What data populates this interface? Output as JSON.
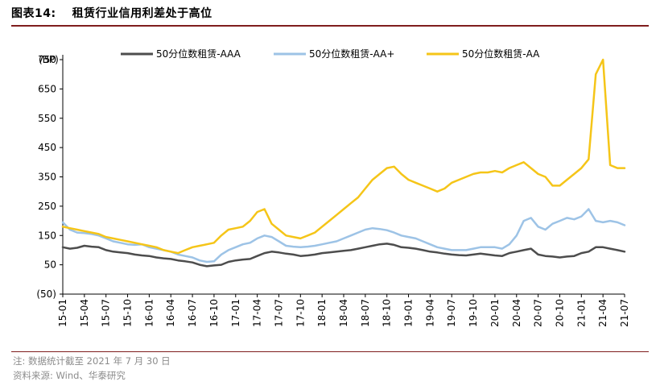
{
  "header": {
    "figure_label": "图表14:",
    "title": "租赁行业信用利差处于高位"
  },
  "footer": {
    "note": "注: 数据统计截至 2021 年 7 月 30 日",
    "source": "资料来源: Wind、华泰研究"
  },
  "chart_data": {
    "type": "line",
    "ylabel": "(BP)",
    "ylim": [
      -50,
      750
    ],
    "yticks": [
      -50,
      50,
      150,
      250,
      350,
      450,
      550,
      650,
      750
    ],
    "ytick_labels": [
      "(50)",
      "50",
      "150",
      "250",
      "350",
      "450",
      "550",
      "650",
      "750"
    ],
    "xtick_labels": [
      "15-01",
      "15-04",
      "15-07",
      "15-10",
      "16-01",
      "16-04",
      "16-07",
      "16-10",
      "17-01",
      "17-04",
      "17-07",
      "17-10",
      "18-01",
      "18-04",
      "18-07",
      "18-10",
      "19-01",
      "19-04",
      "19-07",
      "19-10",
      "20-01",
      "20-04",
      "20-07",
      "20-10",
      "21-01",
      "21-04",
      "21-07"
    ],
    "legend_position": "top",
    "grid": false,
    "x": [
      "15-01",
      "15-02",
      "15-03",
      "15-04",
      "15-05",
      "15-06",
      "15-07",
      "15-08",
      "15-09",
      "15-10",
      "15-11",
      "15-12",
      "16-01",
      "16-02",
      "16-03",
      "16-04",
      "16-05",
      "16-06",
      "16-07",
      "16-08",
      "16-09",
      "16-10",
      "16-11",
      "16-12",
      "17-01",
      "17-02",
      "17-03",
      "17-04",
      "17-05",
      "17-06",
      "17-07",
      "17-08",
      "17-09",
      "17-10",
      "17-11",
      "17-12",
      "18-01",
      "18-02",
      "18-03",
      "18-04",
      "18-05",
      "18-06",
      "18-07",
      "18-08",
      "18-09",
      "18-10",
      "18-11",
      "18-12",
      "19-01",
      "19-02",
      "19-03",
      "19-04",
      "19-05",
      "19-06",
      "19-07",
      "19-08",
      "19-09",
      "19-10",
      "19-11",
      "19-12",
      "20-01",
      "20-02",
      "20-03",
      "20-04",
      "20-05",
      "20-06",
      "20-07",
      "20-08",
      "20-09",
      "20-10",
      "20-11",
      "20-12",
      "21-01",
      "21-02",
      "21-03",
      "21-04",
      "21-05",
      "21-06",
      "21-07"
    ],
    "series": [
      {
        "name": "50分位数租赁-AAA",
        "color": "#4d4d4d",
        "values": [
          110,
          105,
          108,
          115,
          112,
          110,
          100,
          95,
          92,
          90,
          85,
          82,
          80,
          75,
          72,
          70,
          65,
          62,
          58,
          50,
          45,
          48,
          50,
          60,
          65,
          68,
          70,
          80,
          90,
          95,
          92,
          88,
          85,
          80,
          82,
          85,
          90,
          92,
          95,
          98,
          100,
          105,
          110,
          115,
          120,
          122,
          118,
          110,
          108,
          105,
          100,
          95,
          92,
          88,
          85,
          83,
          82,
          85,
          88,
          85,
          82,
          80,
          90,
          95,
          100,
          105,
          85,
          80,
          78,
          75,
          78,
          80,
          90,
          95,
          110,
          110,
          105,
          100,
          95
        ]
      },
      {
        "name": "50分位数租赁-AA+",
        "color": "#9dc3e6",
        "values": [
          195,
          170,
          160,
          158,
          155,
          150,
          140,
          130,
          125,
          120,
          118,
          120,
          110,
          105,
          100,
          95,
          85,
          80,
          75,
          65,
          60,
          62,
          85,
          100,
          110,
          120,
          125,
          140,
          150,
          145,
          130,
          115,
          112,
          110,
          112,
          115,
          120,
          125,
          130,
          140,
          150,
          160,
          170,
          175,
          172,
          168,
          160,
          150,
          145,
          140,
          130,
          120,
          110,
          105,
          100,
          100,
          100,
          105,
          110,
          110,
          110,
          105,
          120,
          150,
          200,
          210,
          180,
          170,
          190,
          200,
          210,
          205,
          215,
          240,
          200,
          195,
          200,
          195,
          185
        ]
      },
      {
        "name": "50分位数租赁-AA",
        "color": "#f5c518",
        "values": [
          180,
          175,
          170,
          165,
          160,
          155,
          145,
          140,
          135,
          130,
          125,
          120,
          115,
          110,
          100,
          95,
          90,
          100,
          110,
          115,
          120,
          125,
          150,
          170,
          175,
          180,
          200,
          230,
          240,
          190,
          170,
          150,
          145,
          140,
          150,
          160,
          180,
          200,
          220,
          240,
          260,
          280,
          310,
          340,
          360,
          380,
          385,
          360,
          340,
          330,
          320,
          310,
          300,
          310,
          330,
          340,
          350,
          360,
          365,
          365,
          370,
          365,
          380,
          390,
          400,
          380,
          360,
          350,
          320,
          320,
          340,
          360,
          380,
          410,
          700,
          750,
          390,
          380,
          380
        ]
      }
    ]
  }
}
